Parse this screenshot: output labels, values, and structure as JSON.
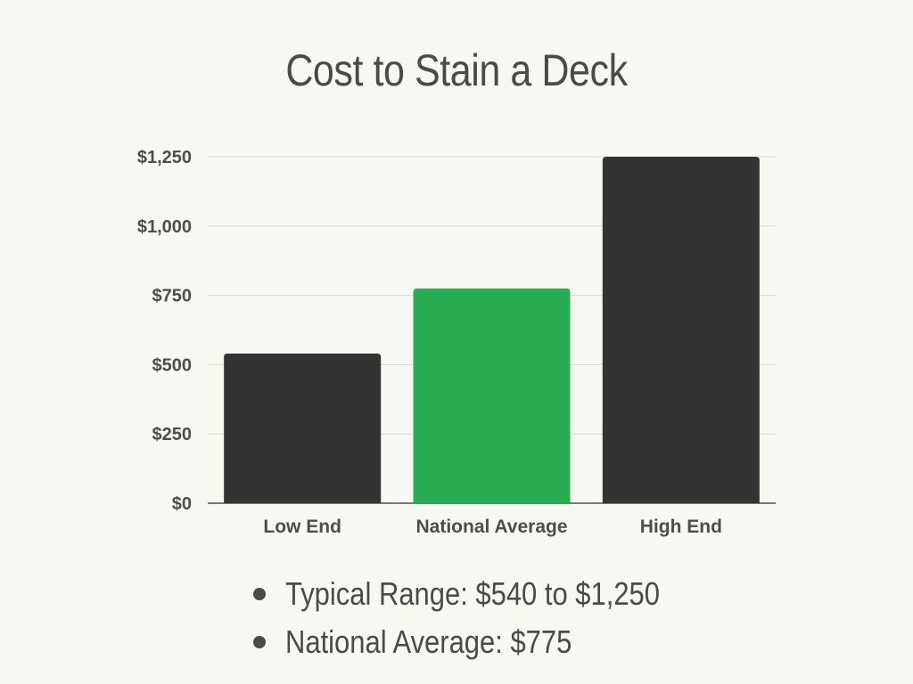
{
  "chart_data": {
    "type": "bar",
    "title": "Cost to Stain a Deck",
    "categories": [
      "Low End",
      "National Average",
      "High End"
    ],
    "values": [
      540,
      775,
      1250
    ],
    "bar_colors": [
      "#333333",
      "#2aad52",
      "#333333"
    ],
    "ylim": [
      0,
      1250
    ],
    "yticks": [
      0,
      250,
      500,
      750,
      1000,
      1250
    ],
    "ytick_labels": [
      "$0",
      "$250",
      "$500",
      "$750",
      "$1,000",
      "$1,250"
    ],
    "xlabel": "",
    "ylabel": "",
    "grid": true,
    "legend": "none"
  },
  "summary": {
    "items": [
      "Typical Range: $540 to $1,250",
      "National Average: $775"
    ]
  },
  "colors": {
    "background": "#f8f8f2",
    "text": "#4a4a4a",
    "gridline": "#d9d9d3",
    "dark_bar": "#333333",
    "accent_bar": "#2aad52"
  }
}
